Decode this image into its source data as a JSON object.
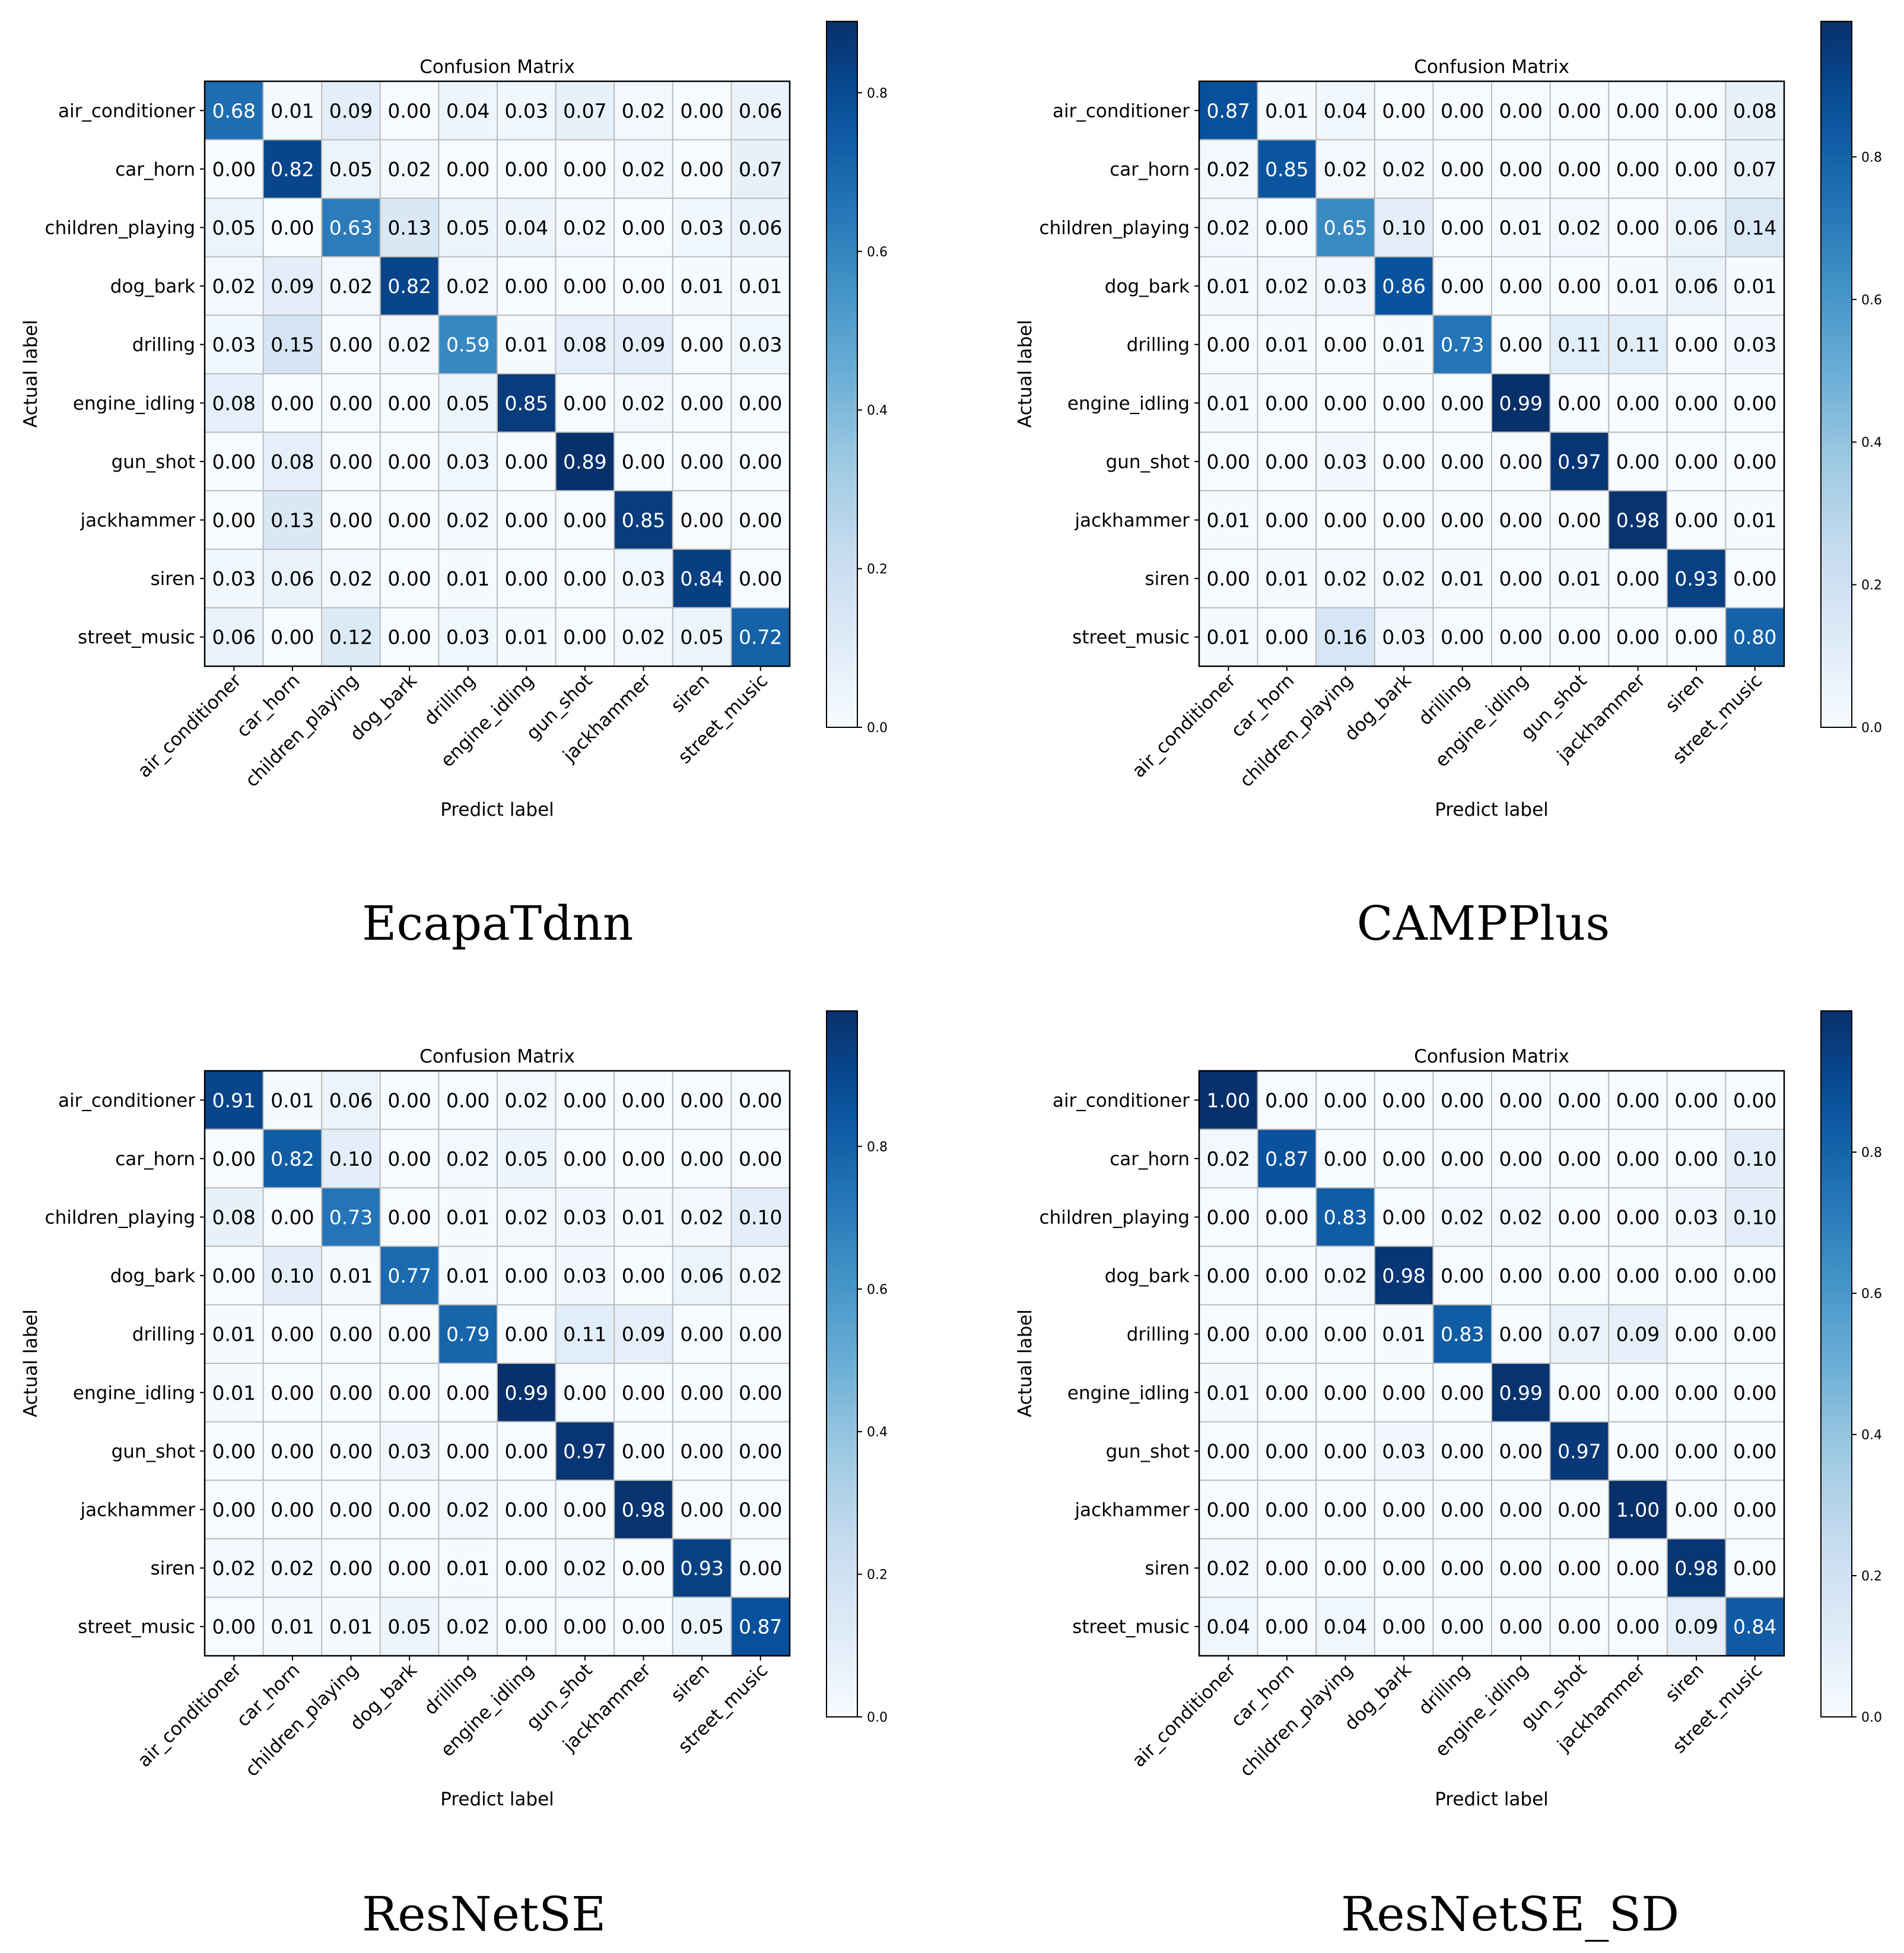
{
  "chart_data": [
    {
      "type": "heatmap",
      "title": "Confusion Matrix",
      "caption": "EcapaTdnn",
      "xlabel": "Predict label",
      "ylabel": "Actual label",
      "labels": [
        "air_conditioner",
        "car_horn",
        "children_playing",
        "dog_bark",
        "drilling",
        "engine_idling",
        "gun_shot",
        "jackhammer",
        "siren",
        "street_music"
      ],
      "colorbar": {
        "min": 0.0,
        "max": 0.89,
        "ticks": [
          "0.0",
          "0.2",
          "0.4",
          "0.6",
          "0.8"
        ]
      },
      "matrix": [
        [
          0.68,
          0.01,
          0.09,
          0.0,
          0.04,
          0.03,
          0.07,
          0.02,
          0.0,
          0.06
        ],
        [
          0.0,
          0.82,
          0.05,
          0.02,
          0.0,
          0.0,
          0.0,
          0.02,
          0.0,
          0.07
        ],
        [
          0.05,
          0.0,
          0.63,
          0.13,
          0.05,
          0.04,
          0.02,
          0.0,
          0.03,
          0.06
        ],
        [
          0.02,
          0.09,
          0.02,
          0.82,
          0.02,
          0.0,
          0.0,
          0.0,
          0.01,
          0.01
        ],
        [
          0.03,
          0.15,
          0.0,
          0.02,
          0.59,
          0.01,
          0.08,
          0.09,
          0.0,
          0.03
        ],
        [
          0.08,
          0.0,
          0.0,
          0.0,
          0.05,
          0.85,
          0.0,
          0.02,
          0.0,
          0.0
        ],
        [
          0.0,
          0.08,
          0.0,
          0.0,
          0.03,
          0.0,
          0.89,
          0.0,
          0.0,
          0.0
        ],
        [
          0.0,
          0.13,
          0.0,
          0.0,
          0.02,
          0.0,
          0.0,
          0.85,
          0.0,
          0.0
        ],
        [
          0.03,
          0.06,
          0.02,
          0.0,
          0.01,
          0.0,
          0.0,
          0.03,
          0.84,
          0.0
        ],
        [
          0.06,
          0.0,
          0.12,
          0.0,
          0.03,
          0.01,
          0.0,
          0.02,
          0.05,
          0.72
        ]
      ]
    },
    {
      "type": "heatmap",
      "title": "Confusion Matrix",
      "caption": "CAMPPlus",
      "xlabel": "Predict label",
      "ylabel": "Actual label",
      "labels": [
        "air_conditioner",
        "car_horn",
        "children_playing",
        "dog_bark",
        "drilling",
        "engine_idling",
        "gun_shot",
        "jackhammer",
        "siren",
        "street_music"
      ],
      "colorbar": {
        "min": 0.0,
        "max": 0.99,
        "ticks": [
          "0.0",
          "0.2",
          "0.4",
          "0.6",
          "0.8"
        ]
      },
      "matrix": [
        [
          0.87,
          0.01,
          0.04,
          0.0,
          0.0,
          0.0,
          0.0,
          0.0,
          0.0,
          0.08
        ],
        [
          0.02,
          0.85,
          0.02,
          0.02,
          0.0,
          0.0,
          0.0,
          0.0,
          0.0,
          0.07
        ],
        [
          0.02,
          0.0,
          0.65,
          0.1,
          0.0,
          0.01,
          0.02,
          0.0,
          0.06,
          0.14
        ],
        [
          0.01,
          0.02,
          0.03,
          0.86,
          0.0,
          0.0,
          0.0,
          0.01,
          0.06,
          0.01
        ],
        [
          0.0,
          0.01,
          0.0,
          0.01,
          0.73,
          0.0,
          0.11,
          0.11,
          0.0,
          0.03
        ],
        [
          0.01,
          0.0,
          0.0,
          0.0,
          0.0,
          0.99,
          0.0,
          0.0,
          0.0,
          0.0
        ],
        [
          0.0,
          0.0,
          0.03,
          0.0,
          0.0,
          0.0,
          0.97,
          0.0,
          0.0,
          0.0
        ],
        [
          0.01,
          0.0,
          0.0,
          0.0,
          0.0,
          0.0,
          0.0,
          0.98,
          0.0,
          0.01
        ],
        [
          0.0,
          0.01,
          0.02,
          0.02,
          0.01,
          0.0,
          0.01,
          0.0,
          0.93,
          0.0
        ],
        [
          0.01,
          0.0,
          0.16,
          0.03,
          0.0,
          0.0,
          0.0,
          0.0,
          0.0,
          0.8
        ]
      ]
    },
    {
      "type": "heatmap",
      "title": "Confusion Matrix",
      "caption": "ResNetSE",
      "xlabel": "Predict label",
      "ylabel": "Actual label",
      "labels": [
        "air_conditioner",
        "car_horn",
        "children_playing",
        "dog_bark",
        "drilling",
        "engine_idling",
        "gun_shot",
        "jackhammer",
        "siren",
        "street_music"
      ],
      "colorbar": {
        "min": 0.0,
        "max": 0.99,
        "ticks": [
          "0.0",
          "0.2",
          "0.4",
          "0.6",
          "0.8"
        ]
      },
      "matrix": [
        [
          0.91,
          0.01,
          0.06,
          0.0,
          0.0,
          0.02,
          0.0,
          0.0,
          0.0,
          0.0
        ],
        [
          0.0,
          0.82,
          0.1,
          0.0,
          0.02,
          0.05,
          0.0,
          0.0,
          0.0,
          0.0
        ],
        [
          0.08,
          0.0,
          0.73,
          0.0,
          0.01,
          0.02,
          0.03,
          0.01,
          0.02,
          0.1
        ],
        [
          0.0,
          0.1,
          0.01,
          0.77,
          0.01,
          0.0,
          0.03,
          0.0,
          0.06,
          0.02
        ],
        [
          0.01,
          0.0,
          0.0,
          0.0,
          0.79,
          0.0,
          0.11,
          0.09,
          0.0,
          0.0
        ],
        [
          0.01,
          0.0,
          0.0,
          0.0,
          0.0,
          0.99,
          0.0,
          0.0,
          0.0,
          0.0
        ],
        [
          0.0,
          0.0,
          0.0,
          0.03,
          0.0,
          0.0,
          0.97,
          0.0,
          0.0,
          0.0
        ],
        [
          0.0,
          0.0,
          0.0,
          0.0,
          0.02,
          0.0,
          0.0,
          0.98,
          0.0,
          0.0
        ],
        [
          0.02,
          0.02,
          0.0,
          0.0,
          0.01,
          0.0,
          0.02,
          0.0,
          0.93,
          0.0
        ],
        [
          0.0,
          0.01,
          0.01,
          0.05,
          0.02,
          0.0,
          0.0,
          0.0,
          0.05,
          0.87
        ]
      ]
    },
    {
      "type": "heatmap",
      "title": "Confusion Matrix",
      "caption": "ResNetSE_SD",
      "xlabel": "Predict label",
      "ylabel": "Actual label",
      "labels": [
        "air_conditioner",
        "car_horn",
        "children_playing",
        "dog_bark",
        "drilling",
        "engine_idling",
        "gun_shot",
        "jackhammer",
        "siren",
        "street_music"
      ],
      "colorbar": {
        "min": 0.0,
        "max": 1.0,
        "ticks": [
          "0.0",
          "0.2",
          "0.4",
          "0.6",
          "0.8"
        ]
      },
      "matrix": [
        [
          1.0,
          0.0,
          0.0,
          0.0,
          0.0,
          0.0,
          0.0,
          0.0,
          0.0,
          0.0
        ],
        [
          0.02,
          0.87,
          0.0,
          0.0,
          0.0,
          0.0,
          0.0,
          0.0,
          0.0,
          0.1
        ],
        [
          0.0,
          0.0,
          0.83,
          0.0,
          0.02,
          0.02,
          0.0,
          0.0,
          0.03,
          0.1
        ],
        [
          0.0,
          0.0,
          0.02,
          0.98,
          0.0,
          0.0,
          0.0,
          0.0,
          0.0,
          0.0
        ],
        [
          0.0,
          0.0,
          0.0,
          0.01,
          0.83,
          0.0,
          0.07,
          0.09,
          0.0,
          0.0
        ],
        [
          0.01,
          0.0,
          0.0,
          0.0,
          0.0,
          0.99,
          0.0,
          0.0,
          0.0,
          0.0
        ],
        [
          0.0,
          0.0,
          0.0,
          0.03,
          0.0,
          0.0,
          0.97,
          0.0,
          0.0,
          0.0
        ],
        [
          0.0,
          0.0,
          0.0,
          0.0,
          0.0,
          0.0,
          0.0,
          1.0,
          0.0,
          0.0
        ],
        [
          0.02,
          0.0,
          0.0,
          0.0,
          0.0,
          0.0,
          0.0,
          0.0,
          0.98,
          0.0
        ],
        [
          0.04,
          0.0,
          0.04,
          0.0,
          0.0,
          0.0,
          0.0,
          0.0,
          0.09,
          0.84
        ]
      ]
    }
  ]
}
